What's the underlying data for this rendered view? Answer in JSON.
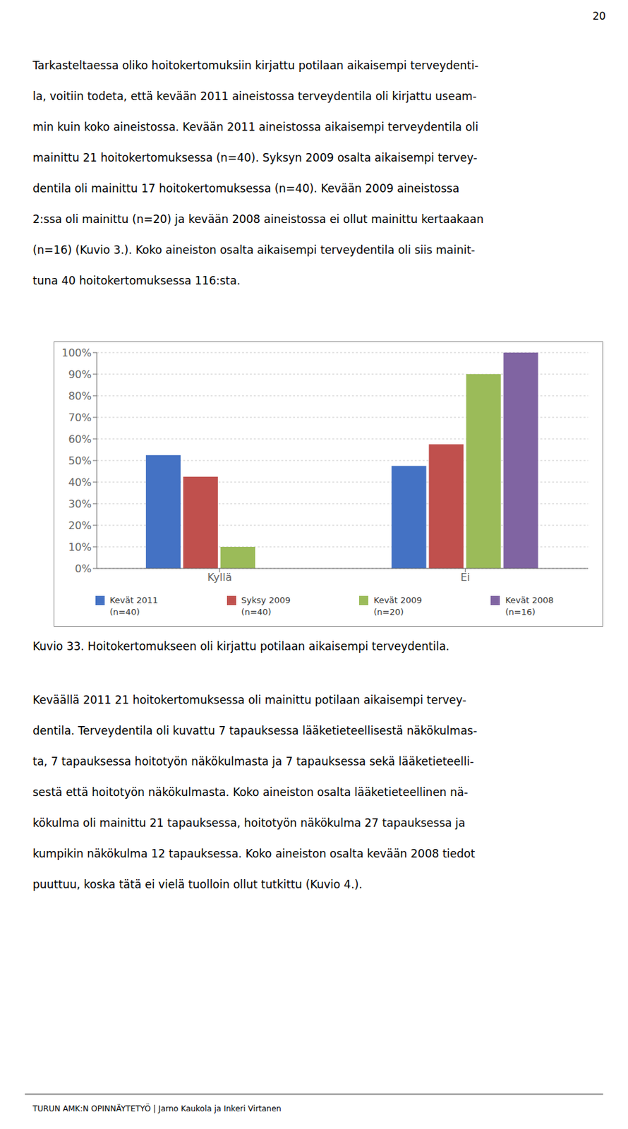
{
  "chart_data": {
    "type": "bar",
    "title": "Kuvio 33. Hoitokertomukseen oli kirjattu potilaan aikaisempi terveydentila.",
    "categories": [
      "Kyllä",
      "Ei"
    ],
    "series": [
      {
        "name": "Kevät 2011\n(n=40)",
        "color": "#4472C4",
        "values": [
          52.5,
          47.5
        ]
      },
      {
        "name": "Syksy 2009\n(n=40)",
        "color": "#C0504D",
        "values": [
          42.5,
          57.5
        ]
      },
      {
        "name": "Kevät 2009\n(n=20)",
        "color": "#9BBB59",
        "values": [
          10.0,
          90.0
        ]
      },
      {
        "name": "Kevät 2008\n(n=16)",
        "color": "#8064A2",
        "values": [
          0.0,
          100.0
        ]
      }
    ],
    "ylim": [
      0,
      100
    ],
    "yticks": [
      {
        "value": 0,
        "label": "0%"
      },
      {
        "value": 10,
        "label": "10%"
      },
      {
        "value": 20,
        "label": "20%"
      },
      {
        "value": 30,
        "label": "30%"
      },
      {
        "value": 40,
        "label": "40%"
      },
      {
        "value": 50,
        "label": "50%"
      },
      {
        "value": 60,
        "label": "60%"
      },
      {
        "value": 70,
        "label": "70%"
      },
      {
        "value": 80,
        "label": "80%"
      },
      {
        "value": 90,
        "label": "90%"
      },
      {
        "value": 100,
        "label": "100%"
      }
    ],
    "grid": true,
    "legend": "bottom"
  },
  "page_number": "20",
  "text_above": [
    "Tarkasteltaessa oliko hoitokertomuksiin kirjattu potilaan aikaisempi terveydenti-",
    "la, voitiin todeta, että kevään 2011 aineistossa terveydentila oli kirjattu useam-",
    "min kuin koko aineistossa. Kevään 2011 aineistossa aikaisempi terveydentila oli",
    "mainittu 21 hoitokertomuksessa (n=40). Syksyn 2009 osalta aikaisempi tervey-",
    "dentila oli mainittu 17 hoitokertomuksessa (n=40). Kevään 2009 aineistossa",
    "2:ssa oli mainittu (n=20) ja kevään 2008 aineistossa ei ollut mainittu kertaakaan",
    "(n=16) (Kuvio 3.). Koko aineiston osalta aikaisempi terveydentila oli siis mainit-",
    "tuna 40 hoitokertomuksessa 116:sta."
  ],
  "text_below": [
    "Keväällä 2011 21 hoitokertomuksessa oli mainittu potilaan aikaisempi tervey-",
    "dentila. Terveydentila oli kuvattu 7 tapauksessa lääketieteellisestä näkökulmas-",
    "ta, 7 tapauksessa hoitotyön näkökulmasta ja 7 tapauksessa sekä lääketieteelli-",
    "sestä että hoitotyön näkökulmasta. Koko aineiston osalta lääketieteellinen nä-",
    "kökulma oli mainittu 21 tapauksessa, hoitotyön näkökulma 27 tapauksessa ja",
    "kumpikin näkökulma 12 tapauksessa. Koko aineiston osalta kevään 2008 tiedot",
    "puuttuu, koska tätä ei vielä tuolloin ollut tutkittu (Kuvio 4.)."
  ],
  "footer": "TURUN AMK:N OPINNÄYTETYÖ  |  Jarno Kaukola ja Inkeri Virtanen"
}
